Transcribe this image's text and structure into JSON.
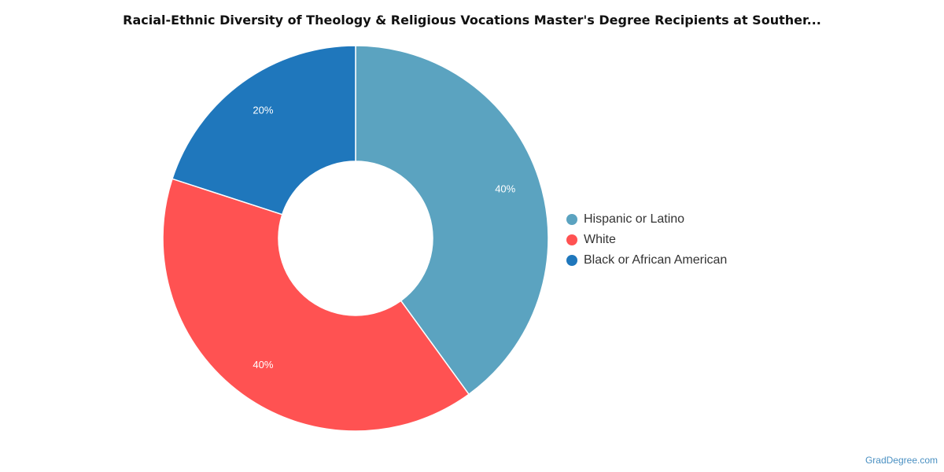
{
  "chart_data": {
    "type": "pie",
    "title": "Racial-Ethnic Diversity of Theology & Religious Vocations Master's Degree Recipients at Souther...",
    "categories": [
      "Hispanic or Latino",
      "White",
      "Black or African American"
    ],
    "values": [
      40,
      40,
      20
    ],
    "value_labels": [
      "40%",
      "40%",
      "20%"
    ],
    "colors": [
      "#5ba3c0",
      "#ff5252",
      "#1f77bc"
    ],
    "donut": true,
    "legend_position": "right"
  },
  "legend": {
    "items": [
      {
        "label": "Hispanic or Latino",
        "color": "#5ba3c0"
      },
      {
        "label": "White",
        "color": "#ff5252"
      },
      {
        "label": "Black or African American",
        "color": "#1f77bc"
      }
    ]
  },
  "watermark": "GradDegree.com"
}
